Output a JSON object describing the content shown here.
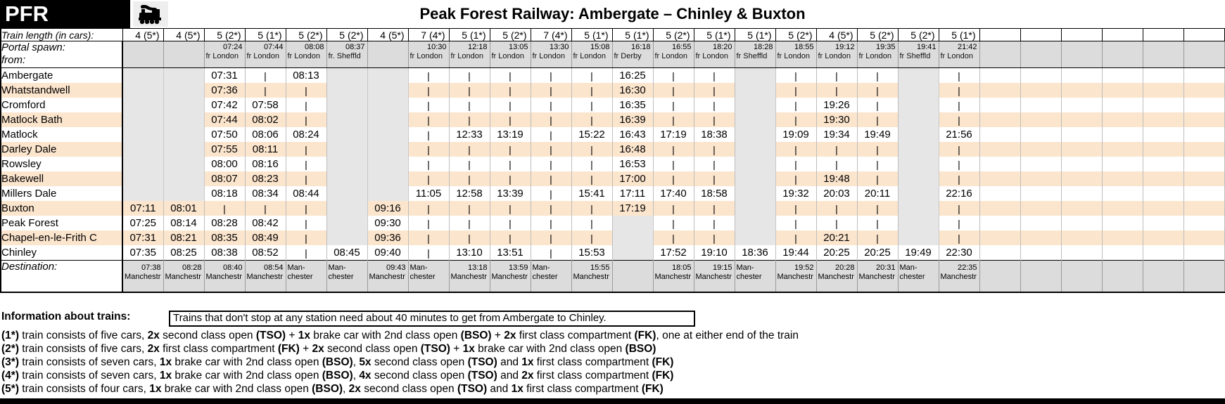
{
  "header": {
    "logo": "PFR",
    "title": "Peak Forest Railway: Ambergate – Chinley & Buxton",
    "icon": "steam-locomotive"
  },
  "row_labels": {
    "train_length": "Train length (in cars):",
    "portal_spawn": "Portal spawn:",
    "from": "from:",
    "destination": "Destination:"
  },
  "stations": [
    "Ambergate",
    "Whatstandwell",
    "Cromford",
    "Matlock Bath",
    "Matlock",
    "Darley Dale",
    "Rowsley",
    "Bakewell",
    "Millers Dale",
    "Buxton",
    "Peak Forest",
    "Chapel-en-le-Frith C",
    "Chinley"
  ],
  "trains": [
    {
      "length": "4 (5*)",
      "spawn_time": "",
      "spawn_from": "",
      "times": [
        null,
        null,
        null,
        null,
        null,
        null,
        null,
        null,
        null,
        "07:11",
        "07:25",
        "07:31",
        "07:35"
      ],
      "dest_time": "07:38",
      "dest_name": "Manchestr"
    },
    {
      "length": "4 (5*)",
      "spawn_time": "",
      "spawn_from": "",
      "times": [
        null,
        null,
        null,
        null,
        null,
        null,
        null,
        null,
        null,
        "08:01",
        "08:14",
        "08:21",
        "08:25"
      ],
      "dest_time": "08:28",
      "dest_name": "Manchestr"
    },
    {
      "length": "5 (2*)",
      "spawn_time": "07:24",
      "spawn_from": "fr London",
      "times": [
        "07:31",
        "07:36",
        "07:42",
        "07:44",
        "07:50",
        "07:55",
        "08:00",
        "08:07",
        "08:18",
        "|",
        "08:28",
        "08:35",
        "08:38"
      ],
      "dest_time": "08:40",
      "dest_name": "Manchestr"
    },
    {
      "length": "5 (1*)",
      "spawn_time": "07:44",
      "spawn_from": "fr London",
      "times": [
        "|",
        "|",
        "07:58",
        "08:02",
        "08:06",
        "08:11",
        "08:16",
        "08:23",
        "08:34",
        "|",
        "08:42",
        "08:49",
        "08:52"
      ],
      "dest_time": "08:54",
      "dest_name": "Manchestr"
    },
    {
      "length": "5 (2*)",
      "spawn_time": "08:08",
      "spawn_from": "fr London",
      "times": [
        "08:13",
        "|",
        "|",
        "|",
        "08:24",
        "|",
        "|",
        "|",
        "08:44",
        "|",
        "|",
        "|",
        "|"
      ],
      "dest_time": "",
      "dest_name": "Man-chester"
    },
    {
      "length": "5 (2*)",
      "spawn_time": "08:37",
      "spawn_from": "fr. Sheffld",
      "times": [
        null,
        null,
        null,
        null,
        null,
        null,
        null,
        null,
        null,
        null,
        null,
        null,
        "08:45"
      ],
      "dest_time": "",
      "dest_name": "Man-chester"
    },
    {
      "length": "4 (5*)",
      "spawn_time": "",
      "spawn_from": "",
      "times": [
        null,
        null,
        null,
        null,
        null,
        null,
        null,
        null,
        null,
        "09:16",
        "09:30",
        "09:36",
        "09:40"
      ],
      "dest_time": "09:43",
      "dest_name": "Manchestr"
    },
    {
      "length": "7 (4*)",
      "spawn_time": "10:30",
      "spawn_from": "fr London",
      "times": [
        "|",
        "|",
        "|",
        "|",
        "|",
        "|",
        "|",
        "|",
        "11:05",
        "|",
        "|",
        "|",
        "|"
      ],
      "dest_time": "",
      "dest_name": "Man-chester"
    },
    {
      "length": "5 (1*)",
      "spawn_time": "12:18",
      "spawn_from": "fr London",
      "times": [
        "|",
        "|",
        "|",
        "|",
        "12:33",
        "|",
        "|",
        "|",
        "12:58",
        "|",
        "|",
        "|",
        "13:10"
      ],
      "dest_time": "13:18",
      "dest_name": "Manchestr"
    },
    {
      "length": "5 (2*)",
      "spawn_time": "13:05",
      "spawn_from": "fr London",
      "times": [
        "|",
        "|",
        "|",
        "|",
        "13:19",
        "|",
        "|",
        "|",
        "13:39",
        "|",
        "|",
        "|",
        "13:51"
      ],
      "dest_time": "13:59",
      "dest_name": "Manchestr"
    },
    {
      "length": "7 (4*)",
      "spawn_time": "13:30",
      "spawn_from": "fr London",
      "times": [
        "|",
        "|",
        "|",
        "|",
        "|",
        "|",
        "|",
        "|",
        "|",
        "|",
        "|",
        "|",
        "|"
      ],
      "dest_time": "",
      "dest_name": "Man-chester"
    },
    {
      "length": "5 (1*)",
      "spawn_time": "15:08",
      "spawn_from": "fr London",
      "times": [
        "|",
        "|",
        "|",
        "|",
        "15:22",
        "|",
        "|",
        "|",
        "15:41",
        "|",
        "|",
        "|",
        "15:53"
      ],
      "dest_time": "15:55",
      "dest_name": "Manchestr"
    },
    {
      "length": "5 (1*)",
      "spawn_time": "16:18",
      "spawn_from": "fr Derby",
      "times": [
        "16:25",
        "16:30",
        "16:35",
        "16:39",
        "16:43",
        "16:48",
        "16:53",
        "17:00",
        "17:11",
        "17:19",
        null,
        null,
        null
      ],
      "dest_time": null,
      "dest_name": null
    },
    {
      "length": "5 (2*)",
      "spawn_time": "16:55",
      "spawn_from": "fr London",
      "times": [
        "|",
        "|",
        "|",
        "|",
        "17:19",
        "|",
        "|",
        "|",
        "17:40",
        "|",
        "|",
        "|",
        "17:52"
      ],
      "dest_time": "18:05",
      "dest_name": "Manchestr"
    },
    {
      "length": "5 (1*)",
      "spawn_time": "18:20",
      "spawn_from": "fr London",
      "times": [
        "|",
        "|",
        "|",
        "|",
        "18:38",
        "|",
        "|",
        "|",
        "18:58",
        "|",
        "|",
        "|",
        "19:10"
      ],
      "dest_time": "19:15",
      "dest_name": "Manchestr"
    },
    {
      "length": "5 (1*)",
      "spawn_time": "18:28",
      "spawn_from": "fr Sheffld",
      "times": [
        null,
        null,
        null,
        null,
        null,
        null,
        null,
        null,
        null,
        null,
        null,
        null,
        "18:36"
      ],
      "dest_time": "",
      "dest_name": "Man-chester"
    },
    {
      "length": "5 (2*)",
      "spawn_time": "18:55",
      "spawn_from": "fr London",
      "times": [
        "|",
        "|",
        "|",
        "|",
        "19:09",
        "|",
        "|",
        "|",
        "19:32",
        "|",
        "|",
        "|",
        "19:44"
      ],
      "dest_time": "19:52",
      "dest_name": "Manchestr"
    },
    {
      "length": "4 (5*)",
      "spawn_time": "19:12",
      "spawn_from": "fr London",
      "times": [
        "|",
        "|",
        "19:26",
        "19:30",
        "19:34",
        "|",
        "|",
        "19:48",
        "20:03",
        "|",
        "|",
        "20:21",
        "20:25"
      ],
      "dest_time": "20:28",
      "dest_name": "Manchestr"
    },
    {
      "length": "5 (2*)",
      "spawn_time": "19:35",
      "spawn_from": "fr London",
      "times": [
        "|",
        "|",
        "|",
        "|",
        "19:49",
        "|",
        "|",
        "|",
        "20:11",
        "|",
        "|",
        "|",
        "20:25"
      ],
      "dest_time": "20:31",
      "dest_name": "Manchestr"
    },
    {
      "length": "5 (2*)",
      "spawn_time": "19:41",
      "spawn_from": "fr Sheffld",
      "times": [
        null,
        null,
        null,
        null,
        null,
        null,
        null,
        null,
        null,
        null,
        null,
        null,
        "19:49"
      ],
      "dest_time": "",
      "dest_name": "Man-chester"
    },
    {
      "length": "5 (1*)",
      "spawn_time": "21:42",
      "spawn_from": "fr London",
      "times": [
        "|",
        "|",
        "|",
        "|",
        "21:56",
        "|",
        "|",
        "|",
        "22:16",
        "|",
        "|",
        "|",
        "22:30"
      ],
      "dest_time": "22:35",
      "dest_name": "Manchestr"
    },
    {
      "length": ""
    },
    {
      "length": ""
    },
    {
      "length": ""
    },
    {
      "length": ""
    },
    {
      "length": ""
    },
    {
      "length": ""
    }
  ],
  "info": {
    "label": "Information about trains:",
    "note": "Trains that don't stop at any station need about 40 minutes to get from Ambergate to Chinley."
  },
  "notes": [
    [
      [
        "(1*)",
        1
      ],
      [
        " train consists of five cars, ",
        0
      ],
      [
        "2x",
        1
      ],
      [
        " second class open ",
        0
      ],
      [
        "(TSO)",
        1
      ],
      [
        " + ",
        0
      ],
      [
        "1x",
        1
      ],
      [
        " brake car with 2nd class open ",
        0
      ],
      [
        "(BSO)",
        1
      ],
      [
        " + ",
        0
      ],
      [
        "2x",
        1
      ],
      [
        " first class compartment ",
        0
      ],
      [
        "(FK)",
        1
      ],
      [
        ", one at either end of the train",
        0
      ]
    ],
    [
      [
        "(2*)",
        1
      ],
      [
        " train consists of five cars, ",
        0
      ],
      [
        "2x",
        1
      ],
      [
        " first class compartment ",
        0
      ],
      [
        "(FK)",
        1
      ],
      [
        " + ",
        0
      ],
      [
        "2x",
        1
      ],
      [
        " second class open ",
        0
      ],
      [
        "(TSO)",
        1
      ],
      [
        " + ",
        0
      ],
      [
        "1x",
        1
      ],
      [
        " brake car with 2nd class open ",
        0
      ],
      [
        "(BSO)",
        1
      ]
    ],
    [
      [
        "(3*)",
        1
      ],
      [
        " train consists of seven cars, ",
        0
      ],
      [
        "1x",
        1
      ],
      [
        " brake car with 2nd class open ",
        0
      ],
      [
        "(BSO)",
        1
      ],
      [
        ", ",
        0
      ],
      [
        "5x",
        1
      ],
      [
        " second class open ",
        0
      ],
      [
        "(TSO)",
        1
      ],
      [
        " and ",
        0
      ],
      [
        "1x",
        1
      ],
      [
        " first class compartment ",
        0
      ],
      [
        "(FK)",
        1
      ]
    ],
    [
      [
        "(4*)",
        1
      ],
      [
        " train consists of seven cars, ",
        0
      ],
      [
        "1x",
        1
      ],
      [
        " brake car with 2nd class open ",
        0
      ],
      [
        "(BSO)",
        1
      ],
      [
        ", ",
        0
      ],
      [
        "4x",
        1
      ],
      [
        " second class open ",
        0
      ],
      [
        "(TSO)",
        1
      ],
      [
        " and ",
        0
      ],
      [
        "2x",
        1
      ],
      [
        " first class compartment ",
        0
      ],
      [
        "(FK)",
        1
      ]
    ],
    [
      [
        "(5*)",
        1
      ],
      [
        " train consists of four cars, ",
        0
      ],
      [
        "1x",
        1
      ],
      [
        " brake car with 2nd class open ",
        0
      ],
      [
        "(BSO)",
        1
      ],
      [
        ", ",
        0
      ],
      [
        "2x",
        1
      ],
      [
        " second class open ",
        0
      ],
      [
        "(TSO)",
        1
      ],
      [
        " and ",
        0
      ],
      [
        "1x",
        1
      ],
      [
        " first class compartment ",
        0
      ],
      [
        "(FK)",
        1
      ]
    ]
  ],
  "colors": {
    "stripe": "#FCE5CD",
    "row_gray": "#DCDCDC",
    "no_service_gray": "#E6E6E6",
    "header_bg": "#000000"
  }
}
